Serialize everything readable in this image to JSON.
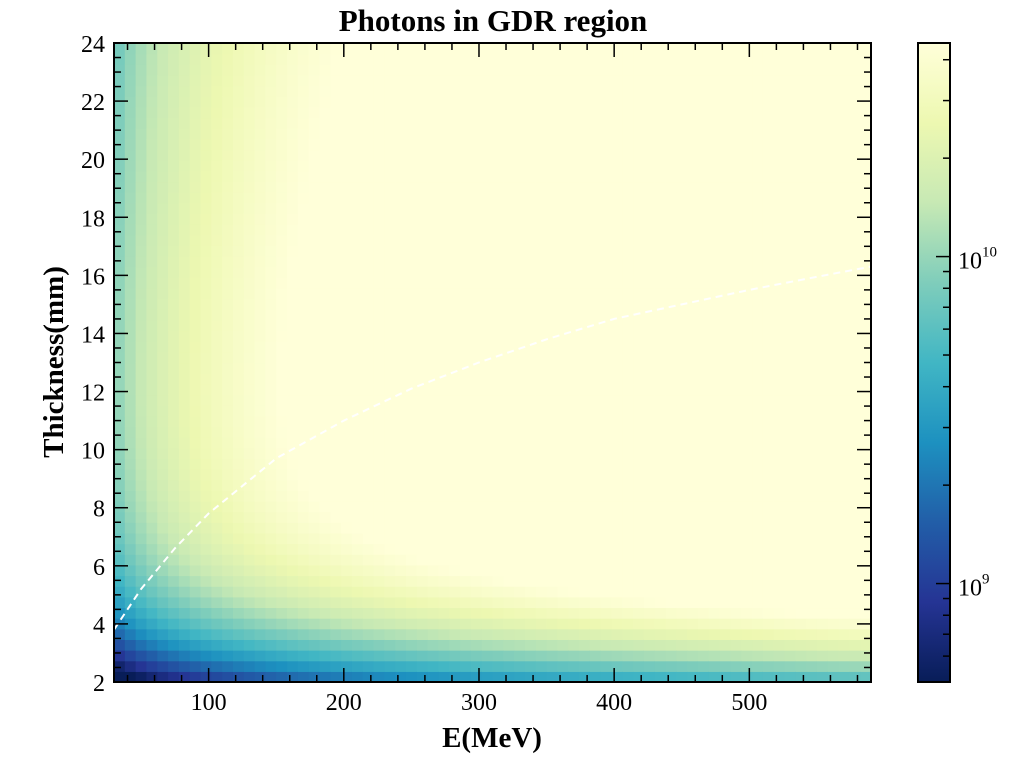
{
  "chart_data": {
    "type": "heatmap",
    "title": "Photons in GDR region",
    "xlabel": "E(MeV)",
    "ylabel": "Thickness(mm)",
    "xlim": [
      30,
      590
    ],
    "ylim": [
      2,
      24
    ],
    "x_ticks": [
      100,
      200,
      300,
      400,
      500
    ],
    "y_ticks": [
      2,
      4,
      6,
      8,
      10,
      12,
      14,
      16,
      18,
      20,
      22,
      24
    ],
    "colormap": "YlGnBu",
    "colorscale": "log",
    "colorbar": {
      "range": [
        500000000.0,
        45000000000.0
      ],
      "ticks": [
        {
          "value": 1000000000.0,
          "base": "10",
          "exp": "9"
        },
        {
          "value": 10000000000.0,
          "base": "10",
          "exp": "10"
        }
      ]
    },
    "overlay_line": {
      "style": "dashed",
      "color": "#ffffff",
      "x": [
        30,
        50,
        75,
        100,
        150,
        200,
        250,
        300,
        350,
        400,
        450,
        500,
        550,
        590
      ],
      "y": [
        3.8,
        5.2,
        6.6,
        7.8,
        9.7,
        11.0,
        12.1,
        13.0,
        13.8,
        14.5,
        15.0,
        15.5,
        15.95,
        16.3
      ]
    },
    "colors": {
      "cmap_stops": [
        "#081d58",
        "#253494",
        "#225ea8",
        "#1d91c0",
        "#41b6c4",
        "#7fcdbb",
        "#c7e9b4",
        "#edf8b1",
        "#ffffd9"
      ]
    }
  }
}
